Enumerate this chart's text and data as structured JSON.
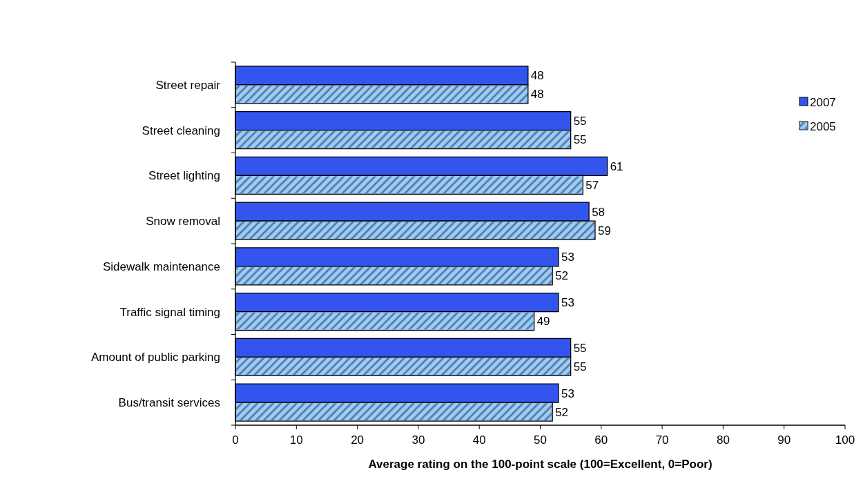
{
  "chart_data": {
    "type": "bar",
    "orientation": "horizontal",
    "xlabel": "Average rating on the 100-point scale (100=Excellent, 0=Poor)",
    "categories": [
      "Street repair",
      "Street cleaning",
      "Street lighting",
      "Snow removal",
      "Sidewalk maintenance",
      "Traffic signal timing",
      "Amount of public parking",
      "Bus/transit services"
    ],
    "series": [
      {
        "name": "2007",
        "color": "#3355ee",
        "values": [
          48,
          55,
          61,
          58,
          53,
          53,
          55,
          53
        ]
      },
      {
        "name": "2005",
        "color": "#99ccff",
        "values": [
          48,
          55,
          57,
          59,
          52,
          49,
          55,
          52
        ]
      }
    ],
    "xlim": [
      0,
      100
    ],
    "xticks": [
      0,
      10,
      20,
      30,
      40,
      50,
      60,
      70,
      80,
      90,
      100
    ],
    "data_labels": true,
    "legend": "top right"
  }
}
